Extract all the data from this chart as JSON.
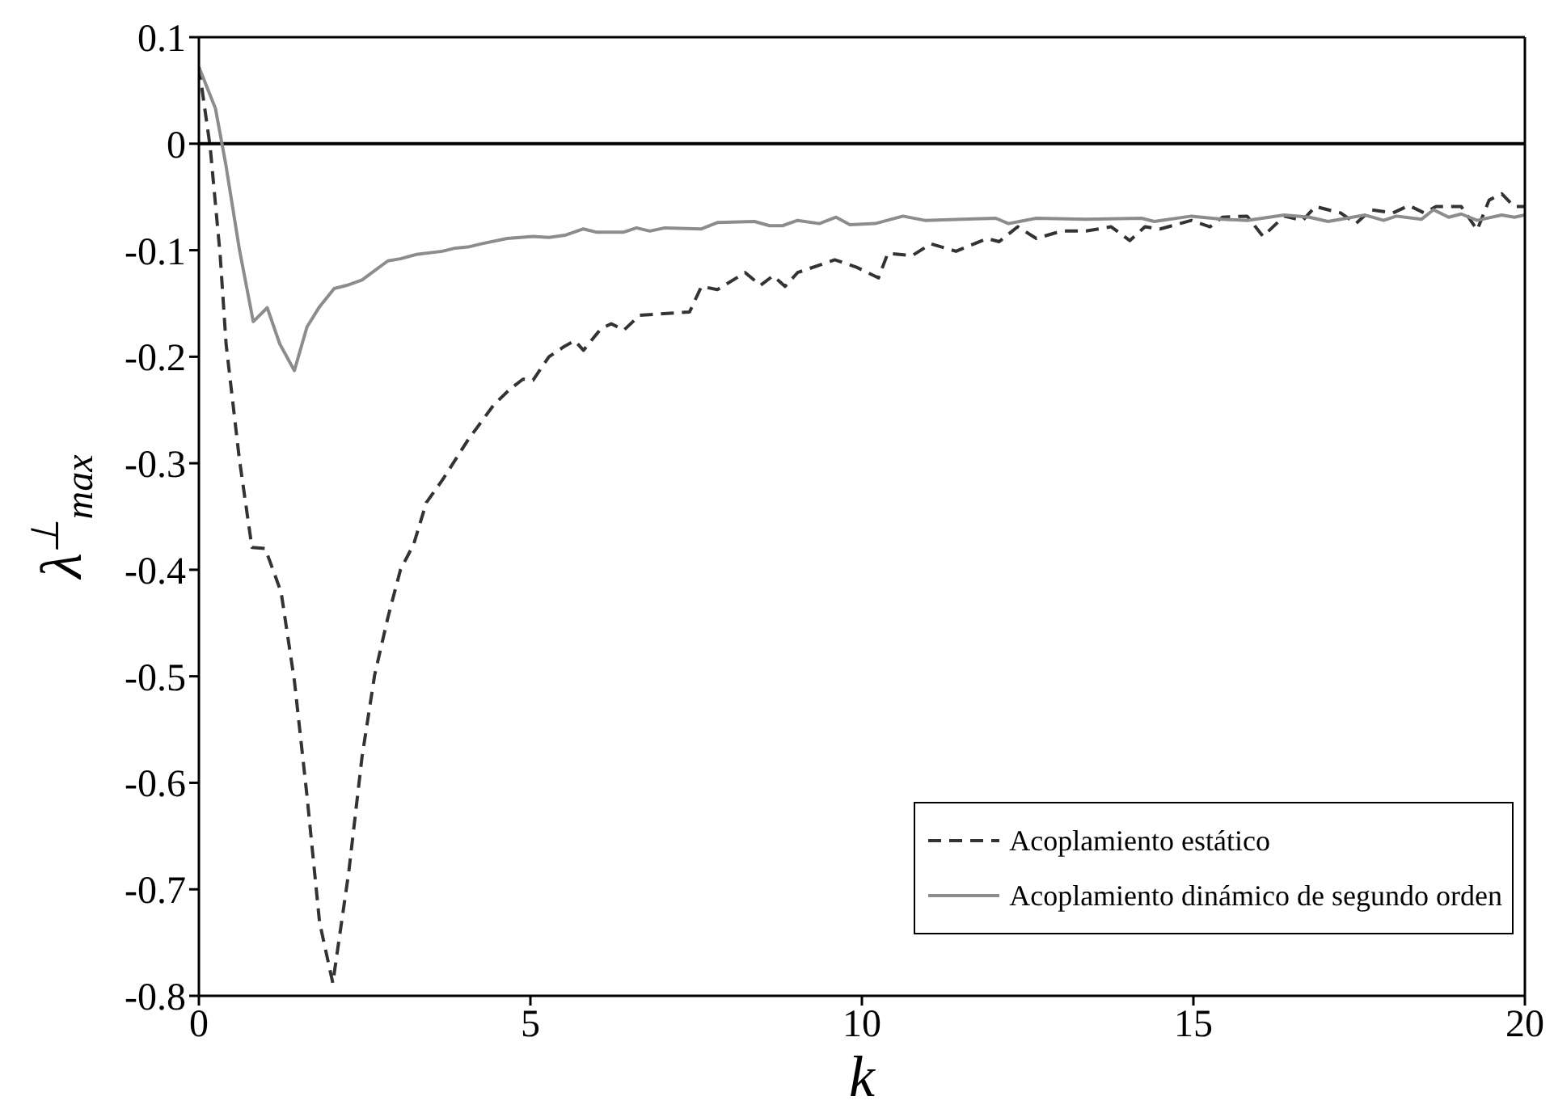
{
  "chart_data": {
    "type": "line",
    "xlabel": "k",
    "ylabel": "λ$^{⊥}$$_{max}$",
    "xlim": [
      0,
      20
    ],
    "xticks": [
      0,
      5,
      10,
      15,
      20
    ],
    "ylim": [
      -0.8,
      0.1
    ],
    "yticks": [
      0.1,
      0,
      -0.1,
      -0.2,
      -0.3,
      -0.4,
      -0.5,
      -0.6,
      -0.7,
      -0.8
    ],
    "legend": "bottom right",
    "marker": "none",
    "ref_lines": [
      {
        "axis": "y",
        "value": 0,
        "color": "#000000"
      }
    ],
    "series": [
      {
        "name": "Acoplamiento estático",
        "color": "#333333",
        "line_style": "dashed",
        "x": [
          0,
          0.17,
          0.32,
          0.41,
          0.61,
          0.8,
          1.0,
          1.24,
          1.44,
          1.63,
          1.82,
          2.02,
          2.26,
          2.46,
          2.65,
          2.85,
          3.04,
          3.24,
          3.43,
          3.67,
          4.06,
          4.45,
          4.7,
          4.89,
          5.04,
          5.28,
          5.52,
          5.67,
          5.8,
          6.06,
          6.22,
          6.41,
          6.65,
          7.4,
          7.58,
          7.82,
          8.24,
          8.47,
          8.66,
          8.84,
          9.03,
          9.59,
          9.92,
          10.25,
          10.39,
          10.76,
          11.04,
          11.42,
          11.89,
          12.07,
          12.35,
          12.63,
          13.01,
          13.38,
          13.76,
          14.04,
          14.27,
          14.5,
          14.97,
          15.25,
          15.44,
          15.81,
          16.05,
          16.37,
          16.65,
          16.84,
          17.22,
          17.45,
          17.68,
          18.01,
          18.25,
          18.48,
          18.66,
          19.04,
          19.28,
          19.46,
          19.65,
          19.84,
          20
        ],
        "values": [
          0.072,
          -0.003,
          -0.104,
          -0.188,
          -0.296,
          -0.379,
          -0.38,
          -0.421,
          -0.504,
          -0.612,
          -0.731,
          -0.788,
          -0.684,
          -0.576,
          -0.499,
          -0.445,
          -0.4,
          -0.376,
          -0.337,
          -0.316,
          -0.278,
          -0.245,
          -0.23,
          -0.221,
          -0.222,
          -0.2,
          -0.19,
          -0.185,
          -0.194,
          -0.174,
          -0.169,
          -0.175,
          -0.161,
          -0.158,
          -0.134,
          -0.137,
          -0.121,
          -0.133,
          -0.124,
          -0.134,
          -0.121,
          -0.109,
          -0.116,
          -0.126,
          -0.103,
          -0.105,
          -0.094,
          -0.101,
          -0.089,
          -0.092,
          -0.078,
          -0.089,
          -0.082,
          -0.082,
          -0.078,
          -0.091,
          -0.078,
          -0.08,
          -0.072,
          -0.078,
          -0.069,
          -0.068,
          -0.087,
          -0.068,
          -0.072,
          -0.059,
          -0.065,
          -0.075,
          -0.062,
          -0.065,
          -0.058,
          -0.065,
          -0.059,
          -0.059,
          -0.081,
          -0.053,
          -0.047,
          -0.059,
          -0.059
        ]
      },
      {
        "name": "Acoplamiento dinámico de segundo orden",
        "color": "#8c8c8c",
        "line_style": "solid",
        "x": [
          0,
          0.25,
          0.41,
          0.61,
          0.82,
          1.03,
          1.22,
          1.44,
          1.63,
          1.82,
          2.04,
          2.23,
          2.46,
          2.85,
          3.04,
          3.28,
          3.67,
          3.87,
          4.06,
          4.26,
          4.65,
          5.04,
          5.28,
          5.52,
          5.8,
          5.99,
          6.41,
          6.6,
          6.8,
          7.03,
          7.58,
          7.82,
          8.38,
          8.61,
          8.8,
          9.03,
          9.36,
          9.61,
          9.82,
          10.2,
          10.62,
          10.95,
          11.51,
          12.02,
          12.21,
          12.63,
          13.38,
          14.22,
          14.41,
          14.97,
          15.44,
          15.81,
          16.37,
          16.75,
          17.03,
          17.31,
          17.59,
          17.87,
          18.06,
          18.44,
          18.62,
          18.85,
          19.04,
          19.28,
          19.65,
          19.84,
          20
        ],
        "values": [
          0.072,
          0.033,
          -0.021,
          -0.099,
          -0.167,
          -0.154,
          -0.188,
          -0.213,
          -0.172,
          -0.153,
          -0.136,
          -0.133,
          -0.128,
          -0.11,
          -0.108,
          -0.104,
          -0.101,
          -0.098,
          -0.097,
          -0.094,
          -0.089,
          -0.087,
          -0.088,
          -0.086,
          -0.08,
          -0.083,
          -0.083,
          -0.079,
          -0.082,
          -0.079,
          -0.08,
          -0.074,
          -0.073,
          -0.077,
          -0.077,
          -0.072,
          -0.075,
          -0.069,
          -0.076,
          -0.075,
          -0.068,
          -0.072,
          -0.071,
          -0.07,
          -0.075,
          -0.07,
          -0.071,
          -0.07,
          -0.073,
          -0.068,
          -0.071,
          -0.072,
          -0.067,
          -0.069,
          -0.073,
          -0.07,
          -0.067,
          -0.072,
          -0.068,
          -0.071,
          -0.062,
          -0.069,
          -0.066,
          -0.072,
          -0.067,
          -0.069,
          -0.067
        ]
      }
    ]
  }
}
